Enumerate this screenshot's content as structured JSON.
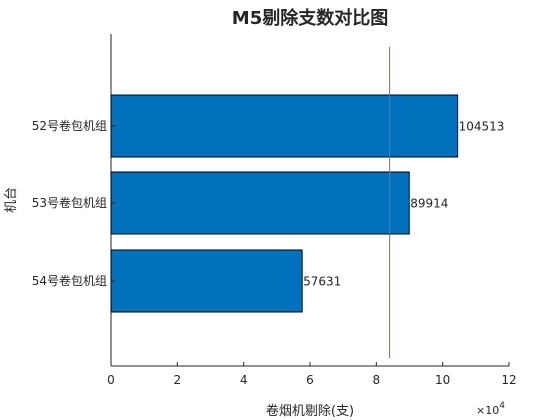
{
  "chart_data": {
    "type": "bar",
    "orientation": "horizontal",
    "title": "M5剔除支数对比图",
    "xlabel": "卷烟机剔除(支)",
    "ylabel": "机台",
    "x_exponent_label": "×10",
    "x_exponent_power": "4",
    "categories": [
      "52号卷包机组",
      "53号卷包机组",
      "54号卷包机组"
    ],
    "values": [
      104513,
      89914,
      57631
    ],
    "value_labels": [
      "104513",
      "89914",
      "57631"
    ],
    "xlim": [
      0,
      120000
    ],
    "x_ticks": [
      0,
      20000,
      40000,
      60000,
      80000,
      100000,
      120000
    ],
    "x_tick_labels": [
      "0",
      "2",
      "4",
      "6",
      "8",
      "10",
      "12"
    ],
    "reference_line": 84000,
    "bar_color": "#0072BD",
    "reference_line_color": "#D95319",
    "grid": false,
    "legend": "none"
  }
}
